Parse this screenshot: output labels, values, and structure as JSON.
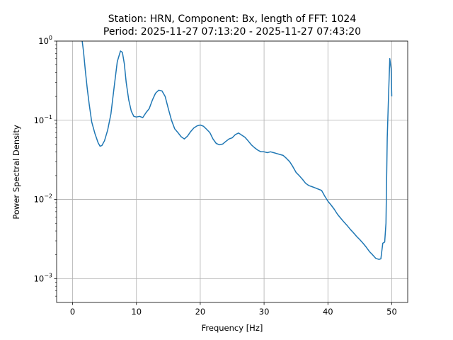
{
  "chart_data": {
    "type": "line",
    "title": "Station: HRN, Component: Bx, length of FFT: 1024",
    "subtitle": "Period: 2025-11-27 07:13:20 - 2025-11-27 07:43:20",
    "xlabel": "Frequency [Hz]",
    "ylabel": "Power Spectral Density",
    "xlim": [
      -2.5,
      52.5
    ],
    "ylim": [
      0.0005,
      1
    ],
    "yscale": "log",
    "grid": true,
    "xticks": [
      0,
      10,
      20,
      30,
      40,
      50
    ],
    "yticks": [
      0.001,
      0.01,
      0.1,
      1
    ],
    "ytick_labels": [
      {
        "base": "10",
        "exp": "−3"
      },
      {
        "base": "10",
        "exp": "−2"
      },
      {
        "base": "10",
        "exp": "−1"
      },
      {
        "base": "10",
        "exp": "0"
      }
    ],
    "line_color": "#1f77b4",
    "series": [
      {
        "x": [
          1.5,
          1.7,
          2.0,
          2.3,
          2.6,
          3.0,
          3.5,
          4.0,
          4.3,
          4.6,
          5.0,
          5.5,
          6.0,
          6.5,
          7.0,
          7.5,
          7.8,
          8.1,
          8.4,
          8.8,
          9.2,
          9.6,
          10.0,
          10.5,
          11.0,
          11.5,
          12.0,
          12.5,
          13.0,
          13.5,
          14.0,
          14.5,
          15.0,
          15.5,
          16.0,
          16.5,
          17.0,
          17.5,
          18.0,
          18.5,
          19.0,
          19.5,
          20.0,
          20.5,
          21.0,
          21.5,
          22.0,
          22.5,
          23.0,
          23.5,
          24.0,
          24.5,
          25.0,
          25.5,
          26.0,
          26.5,
          27.0,
          27.5,
          28.0,
          28.5,
          29.0,
          29.5,
          30.0,
          30.5,
          31.0,
          31.5,
          32.0,
          32.5,
          33.0,
          33.5,
          34.0,
          34.5,
          35.0,
          35.5,
          36.0,
          36.5,
          37.0,
          37.5,
          38.0,
          38.5,
          39.0,
          39.5,
          40.0,
          40.5,
          41.0,
          41.5,
          42.0,
          42.5,
          43.0,
          43.5,
          44.0,
          44.5,
          45.0,
          45.5,
          46.0,
          46.5,
          47.0,
          47.5,
          48.0,
          48.3,
          48.6,
          48.9,
          49.1,
          49.3,
          49.5,
          49.7,
          49.9,
          50.0
        ],
        "y": [
          1.0,
          0.75,
          0.42,
          0.25,
          0.16,
          0.095,
          0.068,
          0.052,
          0.047,
          0.048,
          0.055,
          0.075,
          0.12,
          0.26,
          0.55,
          0.75,
          0.72,
          0.52,
          0.3,
          0.18,
          0.13,
          0.112,
          0.11,
          0.112,
          0.108,
          0.125,
          0.14,
          0.18,
          0.22,
          0.24,
          0.235,
          0.2,
          0.14,
          0.1,
          0.078,
          0.07,
          0.062,
          0.058,
          0.063,
          0.072,
          0.08,
          0.085,
          0.087,
          0.084,
          0.077,
          0.07,
          0.058,
          0.051,
          0.049,
          0.05,
          0.054,
          0.058,
          0.06,
          0.066,
          0.069,
          0.065,
          0.061,
          0.055,
          0.049,
          0.045,
          0.042,
          0.04,
          0.04,
          0.039,
          0.04,
          0.039,
          0.038,
          0.037,
          0.036,
          0.033,
          0.03,
          0.026,
          0.022,
          0.02,
          0.018,
          0.016,
          0.015,
          0.0145,
          0.014,
          0.0135,
          0.013,
          0.011,
          0.0095,
          0.0085,
          0.0075,
          0.0065,
          0.0058,
          0.0052,
          0.0047,
          0.0042,
          0.0038,
          0.0034,
          0.0031,
          0.0028,
          0.0025,
          0.0022,
          0.002,
          0.0018,
          0.00175,
          0.00178,
          0.0028,
          0.0029,
          0.005,
          0.06,
          0.2,
          0.6,
          0.45,
          0.2
        ]
      }
    ]
  }
}
